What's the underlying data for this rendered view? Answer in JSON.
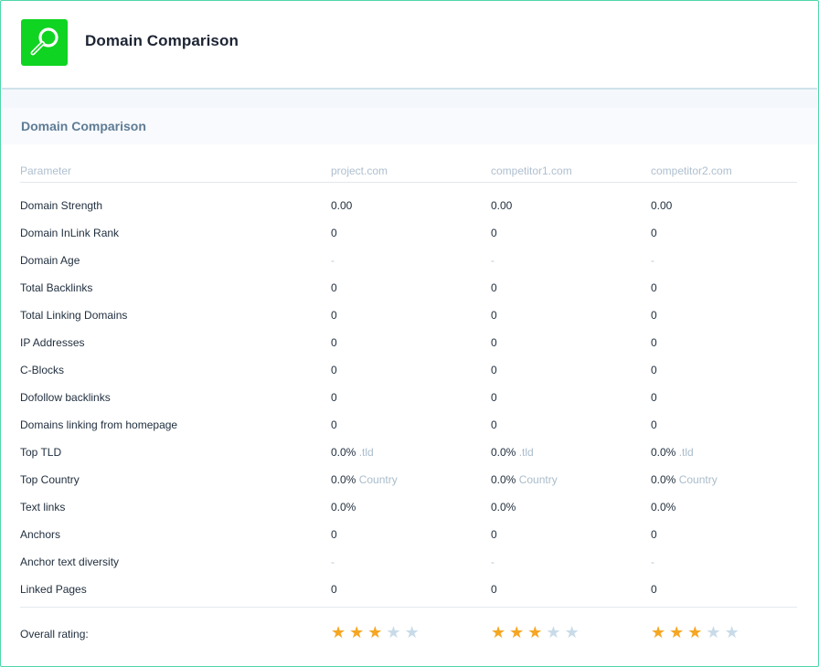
{
  "app": {
    "title": "Domain Comparison",
    "logo_icon": "search-magnifier-icon",
    "logo_color": "#0fd421"
  },
  "section": {
    "title": "Domain Comparison"
  },
  "table": {
    "columns": [
      "Parameter",
      "project.com",
      "competitor1.com",
      "competitor2.com"
    ],
    "rows": [
      {
        "label": "Domain Strength",
        "values": [
          "0.00",
          "0.00",
          "0.00"
        ]
      },
      {
        "label": "Domain InLink Rank",
        "values": [
          "0",
          "0",
          "0"
        ]
      },
      {
        "label": "Domain Age",
        "values": [
          "-",
          "-",
          "-"
        ]
      },
      {
        "label": "Total Backlinks",
        "values": [
          "0",
          "0",
          "0"
        ]
      },
      {
        "label": "Total Linking Domains",
        "values": [
          "0",
          "0",
          "0"
        ]
      },
      {
        "label": "IP Addresses",
        "values": [
          "0",
          "0",
          "0"
        ]
      },
      {
        "label": "C-Blocks",
        "values": [
          "0",
          "0",
          "0"
        ]
      },
      {
        "label": "Dofollow backlinks",
        "values": [
          "0",
          "0",
          "0"
        ]
      },
      {
        "label": "Domains linking from homepage",
        "values": [
          "0",
          "0",
          "0"
        ]
      },
      {
        "label": "Top TLD",
        "values": [
          "0.0%",
          "0.0%",
          "0.0%"
        ],
        "sub": ".tld"
      },
      {
        "label": "Top Country",
        "values": [
          "0.0%",
          "0.0%",
          "0.0%"
        ],
        "sub": "Country"
      },
      {
        "label": "Text links",
        "values": [
          "0.0%",
          "0.0%",
          "0.0%"
        ]
      },
      {
        "label": "Anchors",
        "values": [
          "0",
          "0",
          "0"
        ]
      },
      {
        "label": "Anchor text diversity",
        "values": [
          "-",
          "-",
          "-"
        ]
      },
      {
        "label": "Linked Pages",
        "values": [
          "0",
          "0",
          "0"
        ]
      }
    ],
    "rating": {
      "label": "Overall rating:",
      "max": 5,
      "values": [
        3,
        3,
        3
      ],
      "star_on_color": "#f5a623",
      "star_off_color": "#c9dbe8"
    }
  }
}
